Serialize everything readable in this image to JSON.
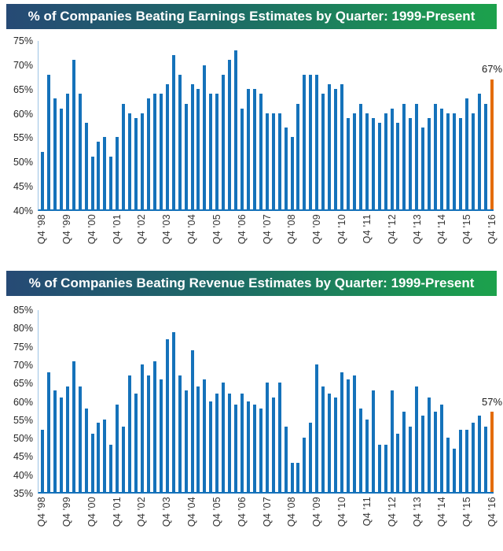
{
  "colors": {
    "bar_blue": "#1572ba",
    "bar_highlight_orange": "#e36c0a",
    "header_gradient_left_navy": "#264a75",
    "header_gradient_right_green": "#1ca24c",
    "header_text": "#ffffff",
    "axis_line_light_blue": "#9cc3e5",
    "baseline_blue": "#1572ba",
    "tick_text": "#262626"
  },
  "chart_data": [
    {
      "type": "bar",
      "title": "% of Companies Beating Earnings Estimates by Quarter: 1999-Present",
      "ylabel": "",
      "xlabel": "",
      "ylim": [
        40,
        75
      ],
      "grid": false,
      "legend": "none",
      "y_tick_labels": [
        "75%",
        "70%",
        "65%",
        "60%",
        "55%",
        "50%",
        "45%",
        "40%"
      ],
      "y_tick_values": [
        75,
        70,
        65,
        60,
        55,
        50,
        45,
        40
      ],
      "x_tick_labels": [
        "Q4 '98",
        "Q4 '99",
        "Q4 '00",
        "Q4 '01",
        "Q4 '02",
        "Q4 '03",
        "Q4 '04",
        "Q4 '05",
        "Q4 '06",
        "Q4 '07",
        "Q4 '08",
        "Q4 '09",
        "Q4 '10",
        "Q4 '11",
        "Q4 '12",
        "Q4 '13",
        "Q4 '14",
        "Q4 '15",
        "Q4 '16"
      ],
      "x_tick_every": 4,
      "values": [
        52,
        68,
        63,
        61,
        64,
        71,
        64,
        58,
        51,
        54,
        55,
        51,
        55,
        62,
        60,
        59,
        60,
        63,
        64,
        64,
        66,
        72,
        68,
        62,
        66,
        65,
        70,
        64,
        64,
        68,
        71,
        73,
        61,
        65,
        65,
        64,
        60,
        60,
        60,
        57,
        55,
        62,
        68,
        68,
        68,
        64,
        66,
        65,
        66,
        59,
        60,
        62,
        60,
        59,
        58,
        60,
        61,
        58,
        62,
        59,
        62,
        57,
        59,
        62,
        61,
        60,
        60,
        59,
        63,
        60,
        64,
        62,
        67
      ],
      "highlight_index": 72,
      "highlight_label": "67%"
    },
    {
      "type": "bar",
      "title": "% of Companies Beating Revenue Estimates by Quarter: 1999-Present",
      "ylabel": "",
      "xlabel": "",
      "ylim": [
        35,
        85
      ],
      "grid": false,
      "legend": "none",
      "y_tick_labels": [
        "85%",
        "80%",
        "75%",
        "70%",
        "65%",
        "60%",
        "55%",
        "50%",
        "45%",
        "40%",
        "35%"
      ],
      "y_tick_values": [
        85,
        80,
        75,
        70,
        65,
        60,
        55,
        50,
        45,
        40,
        35
      ],
      "x_tick_labels": [
        "Q4 '98",
        "Q4 '99",
        "Q4 '00",
        "Q4 '01",
        "Q4 '02",
        "Q4 '03",
        "Q4 '04",
        "Q4 '05",
        "Q4 '06",
        "Q4 '07",
        "Q4 '08",
        "Q4 '09",
        "Q4 '10",
        "Q4 '11",
        "Q4 '12",
        "Q4 '13",
        "Q4 '14",
        "Q4 '15",
        "Q4 '16"
      ],
      "x_tick_every": 4,
      "values": [
        52,
        68,
        63,
        61,
        64,
        71,
        64,
        58,
        51,
        54,
        55,
        48,
        59,
        53,
        67,
        62,
        70,
        67,
        71,
        66,
        77,
        79,
        67,
        63,
        74,
        64,
        66,
        60,
        62,
        65,
        62,
        59,
        62,
        60,
        59,
        58,
        65,
        61,
        65,
        53,
        43,
        43,
        50,
        54,
        70,
        64,
        62,
        61,
        68,
        66,
        67,
        58,
        55,
        63,
        48,
        48,
        63,
        51,
        57,
        53,
        64,
        56,
        61,
        57,
        59,
        50,
        47,
        52,
        52,
        54,
        56,
        53,
        57
      ],
      "highlight_index": 72,
      "highlight_label": "57%"
    }
  ]
}
